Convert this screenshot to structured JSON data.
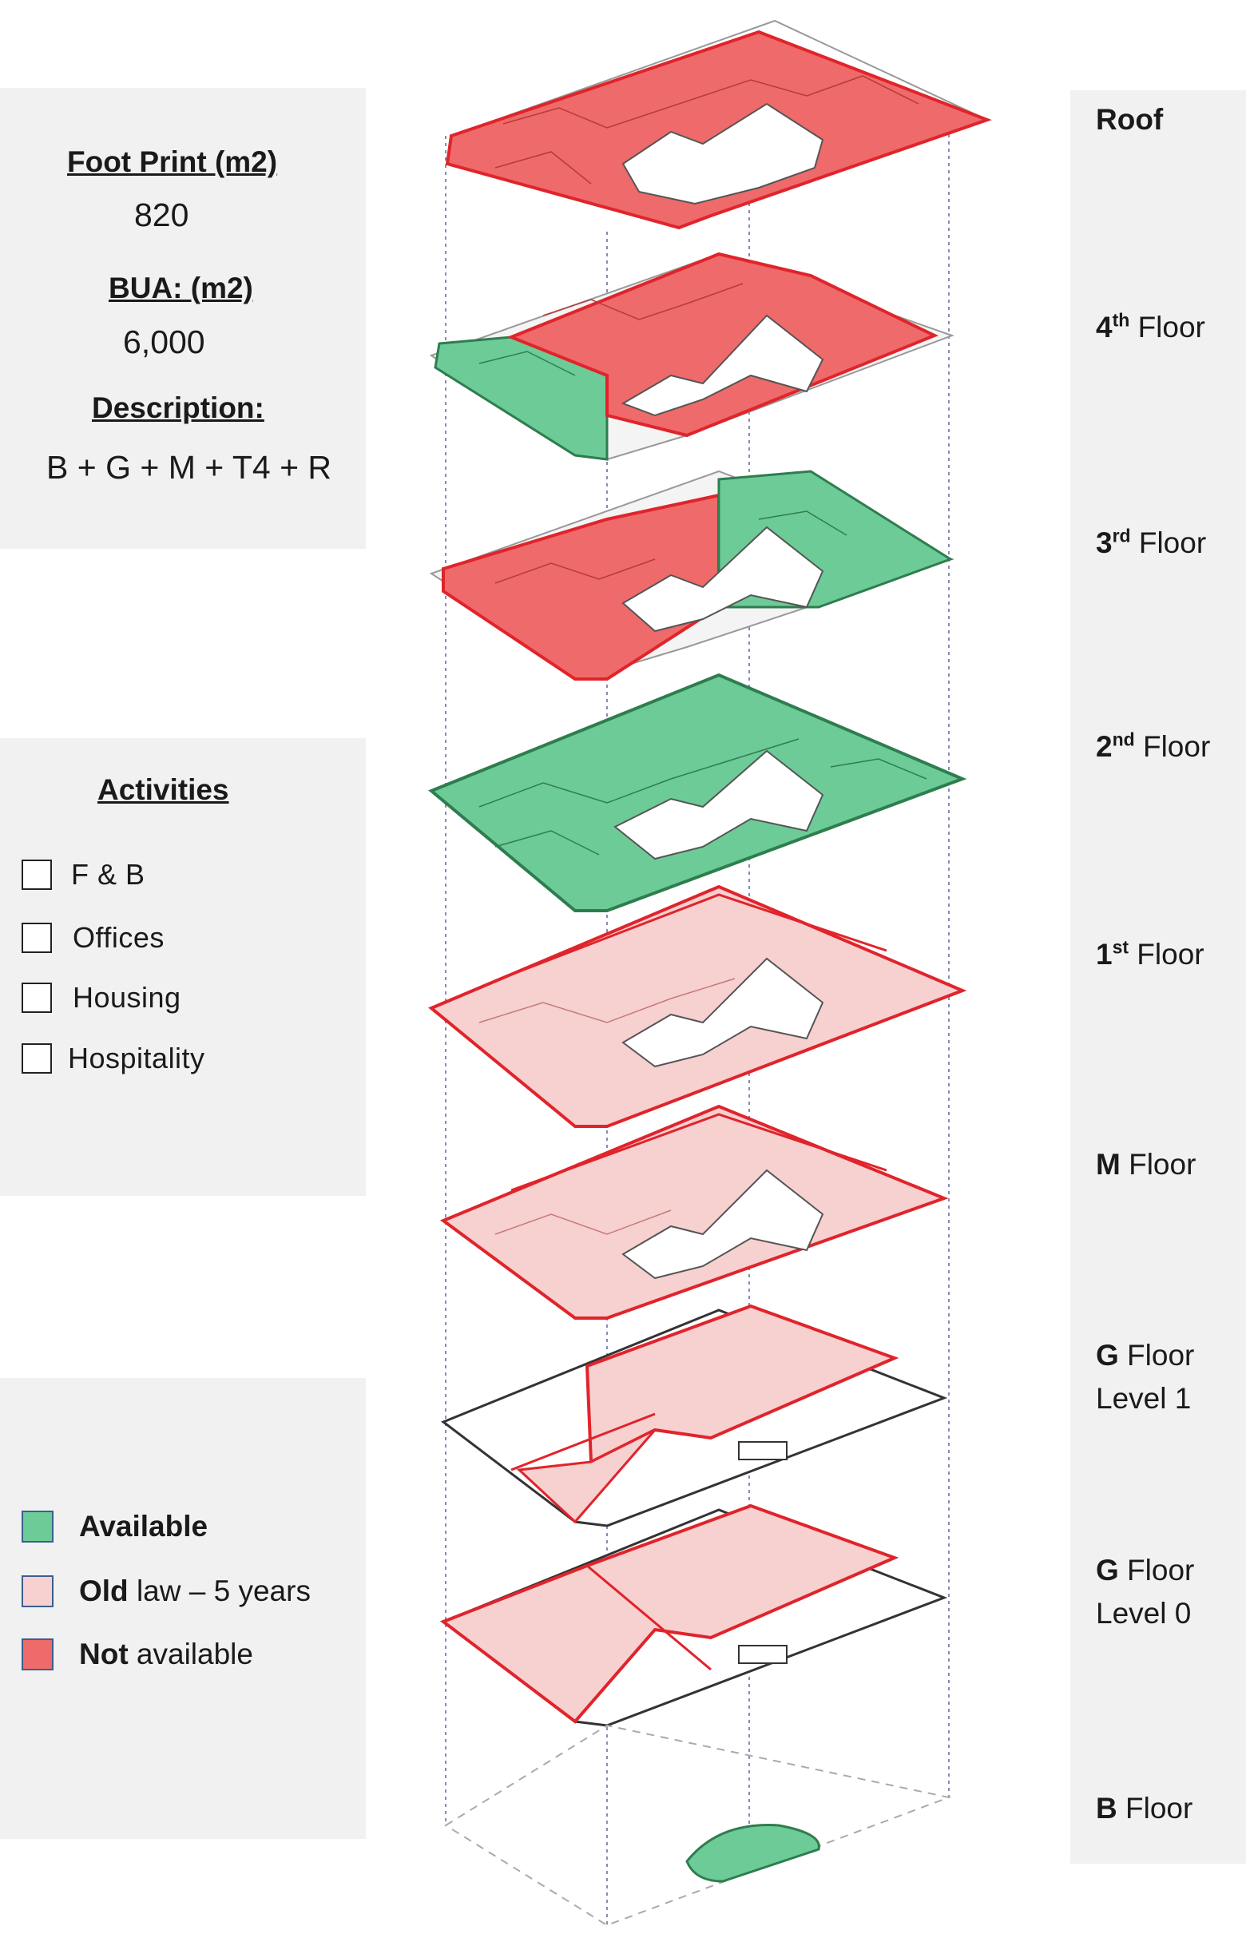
{
  "info": {
    "footprint_heading": "Foot Print (m2)",
    "footprint_value": "820",
    "bua_heading": "BUA: (m2)",
    "bua_value": "6,000",
    "description_heading": "Description:",
    "description_value": "B + G + M + T4 + R"
  },
  "activities": {
    "heading": "Activities",
    "items": [
      "F & B",
      "Offices",
      "Housing",
      "Hospitality"
    ]
  },
  "legend": {
    "items": [
      {
        "bold": "Available",
        "rest": "",
        "color": "#6ccb97"
      },
      {
        "bold": "Old",
        "rest": " law – 5 years",
        "color": "#f7d0d0"
      },
      {
        "bold": "Not",
        "rest": " available",
        "color": "#ef6a6a"
      }
    ]
  },
  "floors": [
    {
      "code": "Roof",
      "sup": "",
      "suffix": "",
      "line2": ""
    },
    {
      "code": "4",
      "sup": "th",
      "suffix": " Floor",
      "line2": ""
    },
    {
      "code": "3",
      "sup": "rd",
      "suffix": " Floor",
      "line2": ""
    },
    {
      "code": "2",
      "sup": "nd",
      "suffix": " Floor",
      "line2": ""
    },
    {
      "code": "1",
      "sup": "st",
      "suffix": " Floor",
      "line2": ""
    },
    {
      "code": "M",
      "sup": "",
      "suffix": " Floor",
      "line2": ""
    },
    {
      "code": "G",
      "sup": "",
      "suffix": " Floor",
      "line2": "Level 1"
    },
    {
      "code": "G",
      "sup": "",
      "suffix": " Floor",
      "line2": "Level 0"
    },
    {
      "code": "B",
      "sup": "",
      "suffix": " Floor",
      "line2": ""
    }
  ],
  "colors": {
    "available": "#6ccb97",
    "old_law": "#f7d0d0",
    "not_available": "#ef6a6a",
    "outline_red": "#e0242b",
    "outline_green": "#2f7d4f"
  }
}
